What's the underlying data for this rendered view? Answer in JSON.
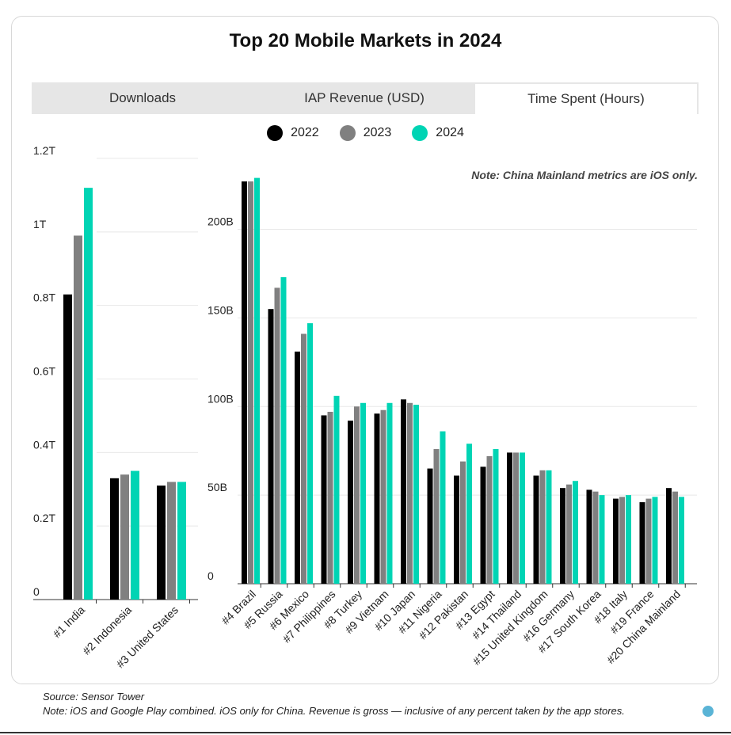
{
  "title": "Top 20 Mobile Markets in 2024",
  "tabs": [
    {
      "label": "Downloads"
    },
    {
      "label": "IAP Revenue (USD)"
    },
    {
      "label": "Time Spent (Hours)",
      "active": true
    }
  ],
  "legend": [
    {
      "label": "2022",
      "color": "#000000"
    },
    {
      "label": "2023",
      "color": "#808080"
    },
    {
      "label": "2024",
      "color": "#00d4b4"
    }
  ],
  "note": "Note: China Mainland metrics are iOS only.",
  "footer": {
    "source": "Source: Sensor Tower",
    "note": "Note: iOS and Google Play combined. iOS only for China. Revenue is gross — inclusive of any percent taken by the app stores."
  },
  "chart_data": [
    {
      "type": "bar",
      "categories": [
        "#1 India",
        "#2 Indonesia",
        "#3 United States"
      ],
      "series": [
        {
          "name": "2022",
          "values": [
            0.83,
            0.33,
            0.31
          ]
        },
        {
          "name": "2023",
          "values": [
            0.99,
            0.34,
            0.32
          ]
        },
        {
          "name": "2024",
          "values": [
            1.12,
            0.35,
            0.32
          ]
        }
      ],
      "ylim": [
        0,
        1.2
      ],
      "yticks": [
        0,
        0.2,
        0.4,
        0.6,
        0.8,
        1.0,
        1.2
      ],
      "ytick_labels": [
        "0",
        "0.2T",
        "0.4T",
        "0.6T",
        "0.8T",
        "1T",
        "1.2T"
      ],
      "grid": true
    },
    {
      "type": "bar",
      "categories": [
        "#4 Brazil",
        "#5 Russia",
        "#6 Mexico",
        "#7 Philippines",
        "#8 Turkey",
        "#9 Vietnam",
        "#10 Japan",
        "#11 Nigeria",
        "#12 Pakistan",
        "#13 Egypt",
        "#14 Thailand",
        "#15 United Kingdom",
        "#16 Germany",
        "#17 South Korea",
        "#18 Italy",
        "#19 France",
        "#20 China Mainland"
      ],
      "series": [
        {
          "name": "2022",
          "values": [
            227,
            155,
            131,
            95,
            92,
            96,
            104,
            65,
            61,
            66,
            74,
            61,
            54,
            53,
            48,
            46,
            54
          ]
        },
        {
          "name": "2023",
          "values": [
            227,
            167,
            141,
            97,
            100,
            98,
            102,
            76,
            69,
            72,
            74,
            64,
            56,
            52,
            49,
            48,
            52
          ]
        },
        {
          "name": "2024",
          "values": [
            229,
            173,
            147,
            106,
            102,
            102,
            101,
            86,
            79,
            76,
            74,
            64,
            58,
            50,
            50,
            49,
            49
          ]
        }
      ],
      "ylim": [
        0,
        240
      ],
      "yticks": [
        0,
        50,
        100,
        150,
        200
      ],
      "ytick_labels": [
        "0",
        "50B",
        "100B",
        "150B",
        "200B"
      ],
      "grid": true
    }
  ]
}
